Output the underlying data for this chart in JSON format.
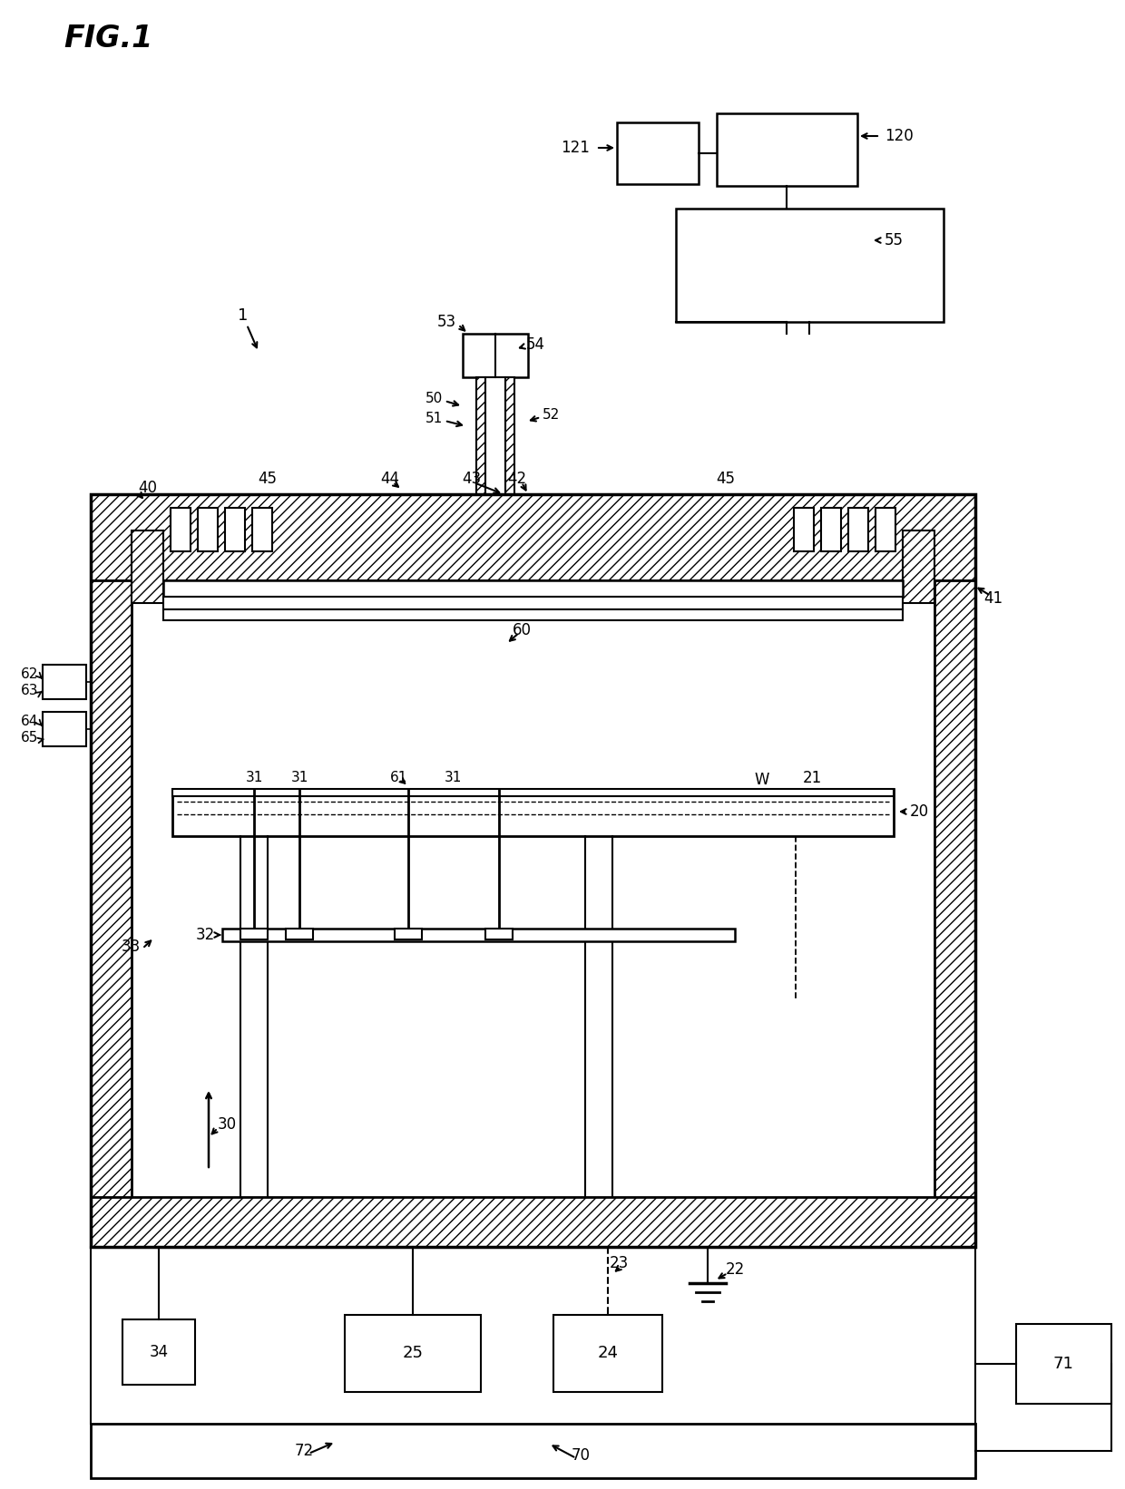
{
  "title": "FIG.1",
  "bg_color": "#ffffff",
  "lc": "#000000",
  "fig_width": 12.4,
  "fig_height": 16.42,
  "dpi": 100
}
